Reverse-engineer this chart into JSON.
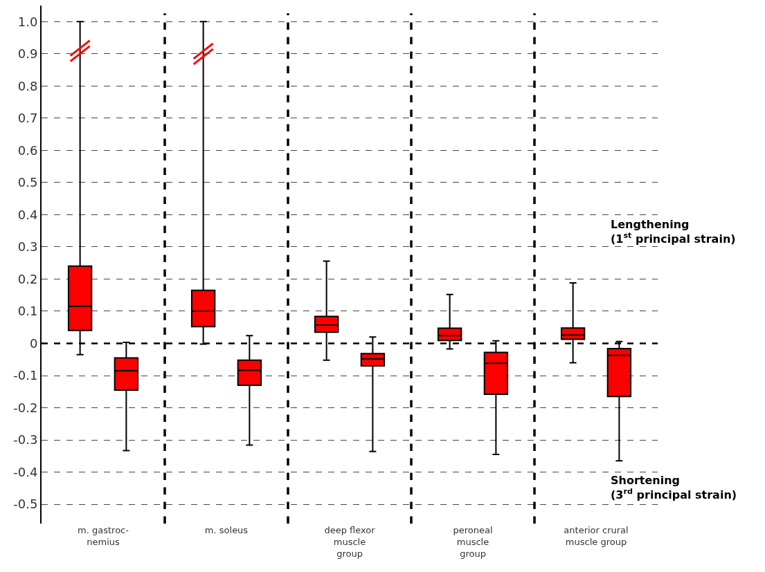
{
  "chart_data": {
    "type": "box",
    "categories": [
      "m. gastroc-\nnemius",
      "m. soleus",
      "deep flexor\nmuscle\ngroup",
      "peroneal\nmuscle\ngroup",
      "anterior crural\nmuscle group"
    ],
    "series": [
      {
        "color": "#ff0000",
        "boxes": [
          {
            "low": -0.035,
            "q1": 0.04,
            "median": 0.115,
            "q3": 0.24,
            "high": 1.0
          },
          {
            "low": -0.002,
            "q1": 0.052,
            "median": 0.1,
            "q3": 0.165,
            "high": 1.0
          },
          {
            "low": -0.052,
            "q1": 0.035,
            "median": 0.057,
            "q3": 0.084,
            "high": 0.256
          },
          {
            "low": -0.017,
            "q1": 0.009,
            "median": 0.024,
            "q3": 0.047,
            "high": 0.152
          },
          {
            "low": -0.06,
            "q1": 0.013,
            "median": 0.026,
            "q3": 0.048,
            "high": 0.188
          }
        ]
      },
      {
        "color": "#ff0000",
        "boxes": [
          {
            "low": -0.333,
            "q1": -0.145,
            "median": -0.085,
            "q3": -0.045,
            "high": 0.003
          },
          {
            "low": -0.316,
            "q1": -0.13,
            "median": -0.084,
            "q3": -0.052,
            "high": 0.024
          },
          {
            "low": -0.336,
            "q1": -0.07,
            "median": -0.048,
            "q3": -0.032,
            "high": 0.02
          },
          {
            "low": -0.345,
            "q1": -0.158,
            "median": -0.062,
            "q3": -0.028,
            "high": 0.008
          },
          {
            "low": -0.365,
            "q1": -0.165,
            "median": -0.037,
            "q3": -0.016,
            "high": 0.006
          }
        ]
      }
    ],
    "ylim": [
      -0.56,
      1.05
    ],
    "yticks": [
      {
        "value": 1,
        "label": "1.0"
      },
      0.9,
      0.8,
      0.7,
      0.6,
      0.5,
      0.4,
      0.3,
      0.2,
      0.1,
      0,
      -0.1,
      -0.2,
      -0.3,
      -0.4,
      -0.5
    ],
    "grid": true,
    "ref_lines": [
      {
        "axis": "y",
        "value": 0,
        "color": "#000000",
        "line_style": "dashed"
      }
    ],
    "annotations": [
      "Lengthening\n(1$^{st}$ principal strain)",
      "Shortening\n(3$^{rd}$ principal strain)"
    ]
  }
}
